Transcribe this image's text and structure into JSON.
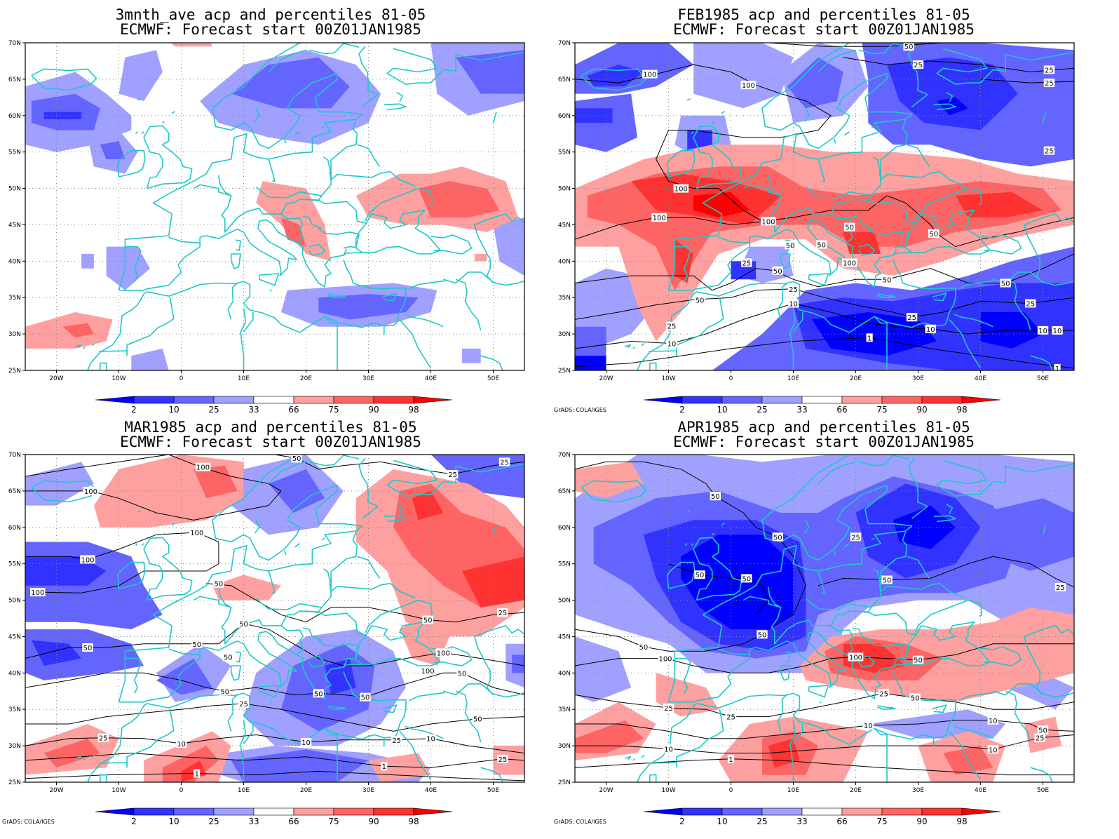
{
  "panels": [
    {
      "title_line1": "3mnth_ave acp and percentiles 81-05",
      "title_line2": "ECMWF: Forecast start 00Z01JAN1985",
      "credit": "",
      "contour_labels": []
    },
    {
      "title_line1": "FEB1985 acp and percentiles 81-05",
      "title_line2": "ECMWF: Forecast start 00Z01JAN1985",
      "credit": "GrADS: COLA/IGES",
      "contour_labels": [
        {
          "text": "50",
          "lon": 28.5,
          "lat": 69.5
        },
        {
          "text": "25",
          "lon": 30,
          "lat": 67
        },
        {
          "text": "25",
          "lon": 51,
          "lat": 66.3
        },
        {
          "text": "25",
          "lon": 51,
          "lat": 64.5
        },
        {
          "text": "100",
          "lon": -13,
          "lat": 65.7
        },
        {
          "text": "100",
          "lon": 2.8,
          "lat": 64.2
        },
        {
          "text": "25",
          "lon": 51,
          "lat": 55.2
        },
        {
          "text": "100",
          "lon": -8,
          "lat": 50
        },
        {
          "text": "100",
          "lon": -11.5,
          "lat": 46
        },
        {
          "text": "100",
          "lon": 6,
          "lat": 45.5
        },
        {
          "text": "50",
          "lon": 19,
          "lat": 44.7
        },
        {
          "text": "50",
          "lon": 32.5,
          "lat": 43.8
        },
        {
          "text": "50",
          "lon": 9.5,
          "lat": 42.2
        },
        {
          "text": "50",
          "lon": 14.5,
          "lat": 42.3
        },
        {
          "text": "100",
          "lon": 19,
          "lat": 39.8
        },
        {
          "text": "25",
          "lon": 2.5,
          "lat": 39.8
        },
        {
          "text": "50",
          "lon": 7.5,
          "lat": 38.7
        },
        {
          "text": "50",
          "lon": 25,
          "lat": 37.5
        },
        {
          "text": "50",
          "lon": 44,
          "lat": 37
        },
        {
          "text": "25",
          "lon": 10,
          "lat": 36.2
        },
        {
          "text": "50",
          "lon": -5,
          "lat": 34.7
        },
        {
          "text": "10",
          "lon": 10,
          "lat": 34.2
        },
        {
          "text": "25",
          "lon": 48,
          "lat": 34.2
        },
        {
          "text": "25",
          "lon": 29,
          "lat": 32.3
        },
        {
          "text": "10",
          "lon": 32,
          "lat": 30.7
        },
        {
          "text": "10",
          "lon": 50,
          "lat": 30.5
        },
        {
          "text": "10",
          "lon": 52.3,
          "lat": 30.5
        },
        {
          "text": "25",
          "lon": -9.5,
          "lat": 31.1
        },
        {
          "text": "1",
          "lon": 22.2,
          "lat": 29.5
        },
        {
          "text": "10",
          "lon": -9.5,
          "lat": 28.7
        },
        {
          "text": "1",
          "lon": 52.3,
          "lat": 25.3
        }
      ]
    },
    {
      "title_line1": "MAR1985 acp and percentiles 81-05",
      "title_line2": "ECMWF: Forecast start 00Z01JAN1985",
      "credit": "GrADS: COLA/IGES",
      "contour_labels": [
        {
          "text": "100",
          "lon": 3.5,
          "lat": 68.3
        },
        {
          "text": "50",
          "lon": 18.5,
          "lat": 69.5
        },
        {
          "text": "25",
          "lon": 43.5,
          "lat": 67.3
        },
        {
          "text": "25",
          "lon": 51.8,
          "lat": 69
        },
        {
          "text": "100",
          "lon": -14.5,
          "lat": 65
        },
        {
          "text": "100",
          "lon": 2.5,
          "lat": 59.3
        },
        {
          "text": "100",
          "lon": -15,
          "lat": 55.6
        },
        {
          "text": "100",
          "lon": -23,
          "lat": 51.1
        },
        {
          "text": "50",
          "lon": 6,
          "lat": 52.3
        },
        {
          "text": "25",
          "lon": 51.5,
          "lat": 48.3
        },
        {
          "text": "50",
          "lon": 10,
          "lat": 46.8
        },
        {
          "text": "50",
          "lon": 39.5,
          "lat": 47.3
        },
        {
          "text": "50",
          "lon": 2.5,
          "lat": 44
        },
        {
          "text": "50",
          "lon": -15,
          "lat": 43.5
        },
        {
          "text": "50",
          "lon": 7.5,
          "lat": 42.2
        },
        {
          "text": "100",
          "lon": 42,
          "lat": 42.8
        },
        {
          "text": "100",
          "lon": 39.5,
          "lat": 40.3
        },
        {
          "text": "50",
          "lon": 45,
          "lat": 40
        },
        {
          "text": "50",
          "lon": 7,
          "lat": 37.5
        },
        {
          "text": "50",
          "lon": 22,
          "lat": 37.2
        },
        {
          "text": "50",
          "lon": 29.5,
          "lat": 36.7
        },
        {
          "text": "25",
          "lon": 10,
          "lat": 35.8
        },
        {
          "text": "50",
          "lon": 47.5,
          "lat": 33.7
        },
        {
          "text": "25",
          "lon": -12.5,
          "lat": 31.1
        },
        {
          "text": "25",
          "lon": 34.5,
          "lat": 30.8
        },
        {
          "text": "10",
          "lon": 20,
          "lat": 30.5
        },
        {
          "text": "10",
          "lon": 0,
          "lat": 30.3
        },
        {
          "text": "10",
          "lon": 40,
          "lat": 31
        },
        {
          "text": "25",
          "lon": 51.5,
          "lat": 28.2
        },
        {
          "text": "1",
          "lon": 32.5,
          "lat": 27.2
        },
        {
          "text": "1",
          "lon": 2.5,
          "lat": 26.2
        }
      ]
    },
    {
      "title_line1": "APR1985 acp and percentiles 81-05",
      "title_line2": "ECMWF: Forecast start 00Z01JAN1985",
      "credit": "GrADS: COLA/IGES",
      "contour_labels": [
        {
          "text": "50",
          "lon": -2.5,
          "lat": 64.3
        },
        {
          "text": "50",
          "lon": 7.5,
          "lat": 58.7
        },
        {
          "text": "25",
          "lon": 20,
          "lat": 58.7
        },
        {
          "text": "50",
          "lon": -5,
          "lat": 53.5
        },
        {
          "text": "50",
          "lon": 2.5,
          "lat": 53
        },
        {
          "text": "50",
          "lon": 25,
          "lat": 52.8
        },
        {
          "text": "25",
          "lon": 52.8,
          "lat": 51.8
        },
        {
          "text": "50",
          "lon": 5,
          "lat": 45.3
        },
        {
          "text": "50",
          "lon": -14,
          "lat": 43.6
        },
        {
          "text": "100",
          "lon": -10.5,
          "lat": 42
        },
        {
          "text": "100",
          "lon": 20,
          "lat": 42.2
        },
        {
          "text": "50",
          "lon": 30,
          "lat": 41.8
        },
        {
          "text": "25",
          "lon": 24.5,
          "lat": 37.2
        },
        {
          "text": "50",
          "lon": 29.5,
          "lat": 36.6
        },
        {
          "text": "25",
          "lon": -10,
          "lat": 35.2
        },
        {
          "text": "25",
          "lon": 0,
          "lat": 34
        },
        {
          "text": "10",
          "lon": 22,
          "lat": 32.8
        },
        {
          "text": "10",
          "lon": 42,
          "lat": 33.5
        },
        {
          "text": "50",
          "lon": 50,
          "lat": 32.2
        },
        {
          "text": "25",
          "lon": 49.5,
          "lat": 31.1
        },
        {
          "text": "10",
          "lon": -10,
          "lat": 29.6
        },
        {
          "text": "10",
          "lon": 42,
          "lat": 29.5
        },
        {
          "text": "1",
          "lon": 0,
          "lat": 28.2
        }
      ]
    }
  ],
  "map": {
    "lon_range": [
      -25,
      55
    ],
    "lat_range": [
      25,
      70
    ],
    "lon_ticks": [
      {
        "value": -20,
        "label": "20W"
      },
      {
        "value": -10,
        "label": "10W"
      },
      {
        "value": 0,
        "label": "0"
      },
      {
        "value": 10,
        "label": "10E"
      },
      {
        "value": 20,
        "label": "20E"
      },
      {
        "value": 30,
        "label": "30E"
      },
      {
        "value": 40,
        "label": "40E"
      },
      {
        "value": 50,
        "label": "50E"
      }
    ],
    "lat_ticks": [
      {
        "value": 25,
        "label": "25N"
      },
      {
        "value": 30,
        "label": "30N"
      },
      {
        "value": 35,
        "label": "35N"
      },
      {
        "value": 40,
        "label": "40N"
      },
      {
        "value": 45,
        "label": "45N"
      },
      {
        "value": 50,
        "label": "50N"
      },
      {
        "value": 55,
        "label": "55N"
      },
      {
        "value": 60,
        "label": "60N"
      },
      {
        "value": 65,
        "label": "65N"
      },
      {
        "value": 70,
        "label": "70N"
      }
    ],
    "coast_color": "#1ec8c8",
    "contour_color": "#000000",
    "grid_color": "#888888"
  },
  "colorbar": {
    "labels": [
      "2",
      "10",
      "25",
      "33",
      "66",
      "75",
      "90",
      "98"
    ],
    "colors": [
      "#0000ff",
      "#3232ff",
      "#6464ff",
      "#a0a0ff",
      "#ffffff",
      "#ffa0a0",
      "#ff6464",
      "#ff3232",
      "#ff0000"
    ]
  }
}
